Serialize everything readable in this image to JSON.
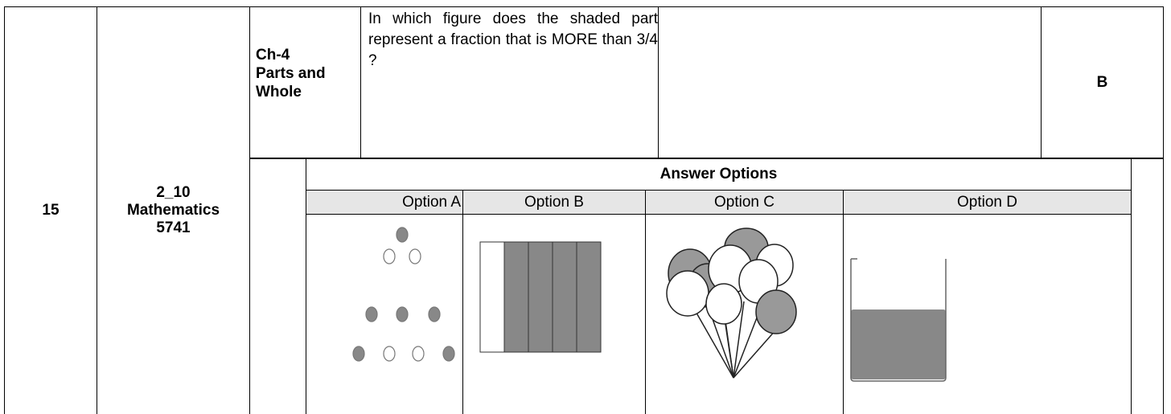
{
  "row": {
    "number": "15",
    "code": [
      "2_10",
      "Mathematics",
      "5741"
    ],
    "chapter": [
      "Ch-4",
      "Parts and",
      "Whole"
    ],
    "question": "In which figure does the shaded part represent a fraction that is MORE than 3/4   ?",
    "answer": "B"
  },
  "answer_options": {
    "title": "Answer Options",
    "options": [
      "Option A",
      "Option B",
      "Option C",
      "Option D"
    ]
  }
}
